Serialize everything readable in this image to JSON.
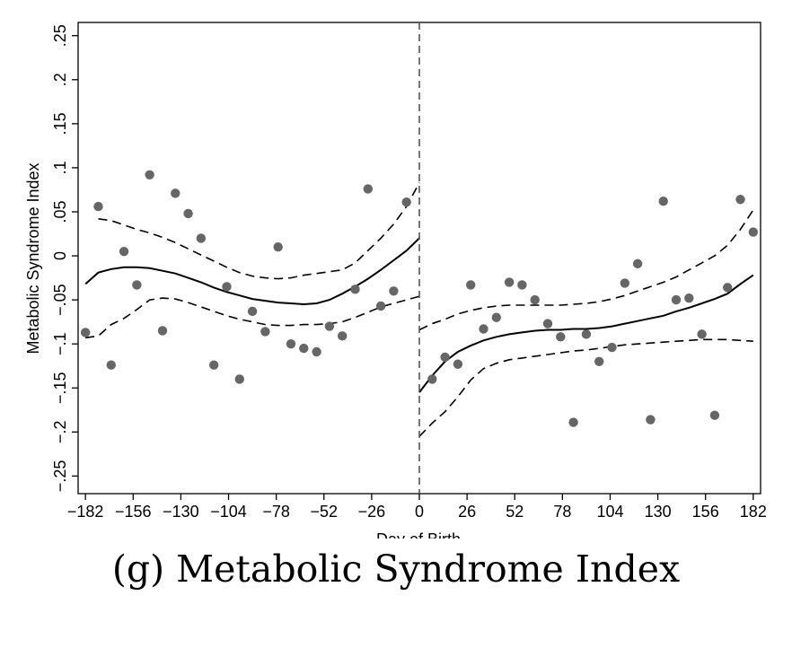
{
  "caption": "(g)  Metabolic Syndrome Index",
  "chart_data": {
    "type": "scatter",
    "title": "",
    "xlabel": "Day of Birth",
    "ylabel": "Metabolic Syndrome Index",
    "xlim": [
      -186,
      186
    ],
    "ylim": [
      -0.27,
      0.265
    ],
    "xticks": [
      -182,
      -156,
      -130,
      -104,
      -78,
      -52,
      -26,
      0,
      26,
      52,
      78,
      104,
      130,
      156,
      182
    ],
    "xtick_labels": [
      "−182",
      "−156",
      "−130",
      "−104",
      "−78",
      "−52",
      "−26",
      "0",
      "26",
      "52",
      "78",
      "104",
      "130",
      "156",
      "182"
    ],
    "yticks": [
      -0.25,
      -0.2,
      -0.15,
      -0.1,
      -0.05,
      0,
      0.05,
      0.1,
      0.15,
      0.2,
      0.25
    ],
    "ytick_labels": [
      "−.25",
      "−.2",
      "−.15",
      "−.1",
      "−.05",
      "0",
      ".05",
      ".1",
      ".15",
      ".2",
      ".25"
    ],
    "cutoff_x": 0,
    "grid": false,
    "legend": "none",
    "colors": {
      "points": "#666666",
      "fit": "#000000",
      "cutoff": "#555555"
    },
    "points": [
      {
        "x": -182,
        "y": -0.087
      },
      {
        "x": -175,
        "y": 0.056
      },
      {
        "x": -168,
        "y": -0.124
      },
      {
        "x": -161,
        "y": 0.005
      },
      {
        "x": -154,
        "y": -0.033
      },
      {
        "x": -147,
        "y": 0.092
      },
      {
        "x": -140,
        "y": -0.085
      },
      {
        "x": -133,
        "y": 0.071
      },
      {
        "x": -126,
        "y": 0.048
      },
      {
        "x": -119,
        "y": 0.02
      },
      {
        "x": -112,
        "y": -0.124
      },
      {
        "x": -105,
        "y": -0.035
      },
      {
        "x": -98,
        "y": -0.14
      },
      {
        "x": -91,
        "y": -0.063
      },
      {
        "x": -84,
        "y": -0.086
      },
      {
        "x": -77,
        "y": 0.01
      },
      {
        "x": -70,
        "y": -0.1
      },
      {
        "x": -63,
        "y": -0.105
      },
      {
        "x": -56,
        "y": -0.109
      },
      {
        "x": -49,
        "y": -0.08
      },
      {
        "x": -42,
        "y": -0.091
      },
      {
        "x": -35,
        "y": -0.038
      },
      {
        "x": -28,
        "y": 0.076
      },
      {
        "x": -21,
        "y": -0.057
      },
      {
        "x": -14,
        "y": -0.04
      },
      {
        "x": -7,
        "y": 0.061
      },
      {
        "x": 7,
        "y": -0.14
      },
      {
        "x": 14,
        "y": -0.115
      },
      {
        "x": 21,
        "y": -0.123
      },
      {
        "x": 28,
        "y": -0.033
      },
      {
        "x": 35,
        "y": -0.083
      },
      {
        "x": 42,
        "y": -0.07
      },
      {
        "x": 49,
        "y": -0.03
      },
      {
        "x": 56,
        "y": -0.033
      },
      {
        "x": 63,
        "y": -0.05
      },
      {
        "x": 70,
        "y": -0.077
      },
      {
        "x": 77,
        "y": -0.092
      },
      {
        "x": 84,
        "y": -0.189
      },
      {
        "x": 91,
        "y": -0.089
      },
      {
        "x": 98,
        "y": -0.12
      },
      {
        "x": 105,
        "y": -0.104
      },
      {
        "x": 112,
        "y": -0.031
      },
      {
        "x": 119,
        "y": -0.009
      },
      {
        "x": 126,
        "y": -0.186
      },
      {
        "x": 133,
        "y": 0.062
      },
      {
        "x": 140,
        "y": -0.05
      },
      {
        "x": 147,
        "y": -0.048
      },
      {
        "x": 154,
        "y": -0.089
      },
      {
        "x": 161,
        "y": -0.181
      },
      {
        "x": 168,
        "y": -0.036
      },
      {
        "x": 175,
        "y": 0.064
      },
      {
        "x": 182,
        "y": 0.027
      }
    ],
    "series": [
      {
        "role": "fit",
        "style": "solid",
        "x": [
          -182,
          -175,
          -168,
          -161,
          -154,
          -147,
          -140,
          -133,
          -126,
          -119,
          -112,
          -105,
          -98,
          -91,
          -84,
          -77,
          -70,
          -63,
          -56,
          -49,
          -42,
          -35,
          -28,
          -21,
          -14,
          -7,
          0
        ],
        "y": [
          -0.032,
          -0.019,
          -0.015,
          -0.013,
          -0.013,
          -0.014,
          -0.017,
          -0.02,
          -0.025,
          -0.03,
          -0.036,
          -0.041,
          -0.045,
          -0.049,
          -0.051,
          -0.053,
          -0.054,
          -0.055,
          -0.054,
          -0.05,
          -0.043,
          -0.035,
          -0.026,
          -0.016,
          -0.005,
          0.006,
          0.02
        ]
      },
      {
        "role": "ci-upper",
        "style": "dashed",
        "x": [
          -175,
          -168,
          -161,
          -154,
          -147,
          -140,
          -133,
          -126,
          -119,
          -112,
          -105,
          -98,
          -91,
          -84,
          -77,
          -70,
          -63,
          -56,
          -49,
          -42,
          -35,
          -28,
          -21,
          -14,
          -7,
          0
        ],
        "y": [
          0.042,
          0.04,
          0.035,
          0.03,
          0.026,
          0.021,
          0.015,
          0.008,
          0.001,
          -0.006,
          -0.013,
          -0.019,
          -0.023,
          -0.025,
          -0.026,
          -0.025,
          -0.022,
          -0.02,
          -0.018,
          -0.016,
          -0.008,
          0.006,
          0.02,
          0.036,
          0.056,
          0.083
        ]
      },
      {
        "role": "ci-lower",
        "style": "dashed",
        "x": [
          -182,
          -175,
          -168,
          -161,
          -154,
          -147,
          -140,
          -133,
          -126,
          -119,
          -112,
          -105,
          -98,
          -91,
          -84,
          -77,
          -70,
          -63,
          -56,
          -49,
          -42,
          -35,
          -28,
          -21,
          -14,
          -7,
          0
        ],
        "y": [
          -0.093,
          -0.091,
          -0.078,
          -0.071,
          -0.061,
          -0.05,
          -0.048,
          -0.049,
          -0.053,
          -0.058,
          -0.063,
          -0.068,
          -0.072,
          -0.075,
          -0.078,
          -0.079,
          -0.079,
          -0.078,
          -0.078,
          -0.077,
          -0.075,
          -0.07,
          -0.064,
          -0.058,
          -0.054,
          -0.05,
          -0.046
        ]
      },
      {
        "role": "fit",
        "style": "solid",
        "x": [
          0,
          7,
          14,
          21,
          28,
          35,
          42,
          49,
          56,
          63,
          70,
          77,
          84,
          91,
          98,
          105,
          112,
          119,
          126,
          133,
          140,
          147,
          154,
          161,
          168,
          175,
          182
        ],
        "y": [
          -0.155,
          -0.136,
          -0.12,
          -0.109,
          -0.102,
          -0.096,
          -0.092,
          -0.089,
          -0.087,
          -0.085,
          -0.084,
          -0.084,
          -0.083,
          -0.083,
          -0.082,
          -0.08,
          -0.077,
          -0.074,
          -0.071,
          -0.068,
          -0.063,
          -0.059,
          -0.054,
          -0.049,
          -0.043,
          -0.032,
          -0.022
        ]
      },
      {
        "role": "ci-upper",
        "style": "dashed",
        "x": [
          0,
          7,
          14,
          21,
          28,
          35,
          42,
          49,
          56,
          63,
          70,
          77,
          84,
          91,
          98,
          105,
          112,
          119,
          126,
          133,
          140,
          147,
          154,
          161,
          168,
          175,
          182
        ],
        "y": [
          -0.084,
          -0.077,
          -0.072,
          -0.066,
          -0.062,
          -0.059,
          -0.057,
          -0.056,
          -0.056,
          -0.056,
          -0.056,
          -0.056,
          -0.055,
          -0.054,
          -0.052,
          -0.049,
          -0.045,
          -0.04,
          -0.035,
          -0.03,
          -0.024,
          -0.016,
          -0.008,
          0.0,
          0.012,
          0.03,
          0.052
        ]
      },
      {
        "role": "ci-lower",
        "style": "dashed",
        "x": [
          0,
          7,
          14,
          21,
          28,
          35,
          42,
          49,
          56,
          63,
          70,
          77,
          84,
          91,
          98,
          105,
          112,
          119,
          126,
          133,
          140,
          147,
          154,
          161,
          168,
          175,
          182
        ],
        "y": [
          -0.205,
          -0.19,
          -0.177,
          -0.16,
          -0.141,
          -0.128,
          -0.122,
          -0.118,
          -0.116,
          -0.114,
          -0.112,
          -0.11,
          -0.108,
          -0.107,
          -0.105,
          -0.103,
          -0.101,
          -0.1,
          -0.099,
          -0.098,
          -0.097,
          -0.096,
          -0.095,
          -0.095,
          -0.095,
          -0.096,
          -0.097
        ]
      }
    ]
  }
}
